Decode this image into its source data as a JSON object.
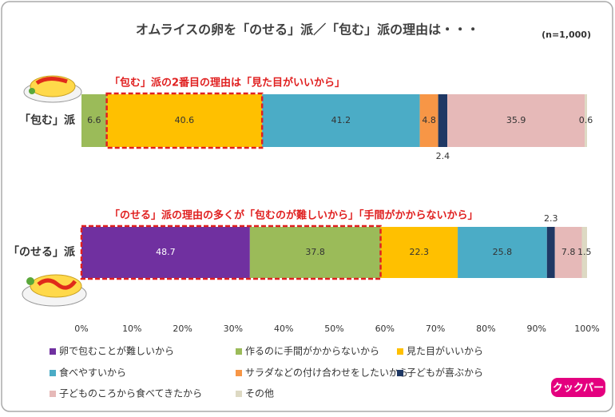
{
  "chart_data": {
    "type": "bar",
    "orientation": "horizontal",
    "stacking": "percent",
    "title": "オムライスの卵を「のせる」派／「包む」派の理由は・・・",
    "subtitle": "(n=1,000)",
    "categories": [
      "「包む」派",
      "「のせる」派"
    ],
    "series": [
      {
        "name": "卵で包むことが難しいから",
        "color": "#7030a0",
        "values": [
          null,
          48.7
        ]
      },
      {
        "name": "作るのに手間がかからないから",
        "color": "#9bbb59",
        "values": [
          6.6,
          37.8
        ]
      },
      {
        "name": "見た目がいいから",
        "color": "#ffc000",
        "values": [
          40.6,
          22.3
        ]
      },
      {
        "name": "食べやすいから",
        "color": "#4bacc6",
        "values": [
          41.2,
          25.8
        ]
      },
      {
        "name": "サラダなどの付け合わせをしたいから",
        "color": "#f79646",
        "values": [
          4.8,
          null
        ]
      },
      {
        "name": "子どもが喜ぶから",
        "color": "#1f3864",
        "values": [
          2.4,
          2.3
        ]
      },
      {
        "name": "子どものころから食べてきたから",
        "color": "#e6b9b8",
        "values": [
          35.9,
          7.8
        ]
      },
      {
        "name": "その他",
        "color": "#ddd9c3",
        "values": [
          0.6,
          1.5
        ]
      }
    ],
    "xlim": [
      0,
      100
    ],
    "xticks": [
      {
        "value": 0,
        "label": "0%"
      },
      {
        "value": 10,
        "label": "10%"
      },
      {
        "value": 20,
        "label": "20%"
      },
      {
        "value": 30,
        "label": "30%"
      },
      {
        "value": 40,
        "label": "40%"
      },
      {
        "value": 50,
        "label": "50%"
      },
      {
        "value": 60,
        "label": "60%"
      },
      {
        "value": 70,
        "label": "70%"
      },
      {
        "value": 80,
        "label": "80%"
      },
      {
        "value": 90,
        "label": "90%"
      },
      {
        "value": 100,
        "label": "100%"
      }
    ],
    "annotations": [
      "「包む」派の2番目の理由は「見た目がいいから」",
      "「のせる」派の理由の多くが「包むのが難しいから」「手間がかからないから」"
    ],
    "logo": "クックパー"
  }
}
